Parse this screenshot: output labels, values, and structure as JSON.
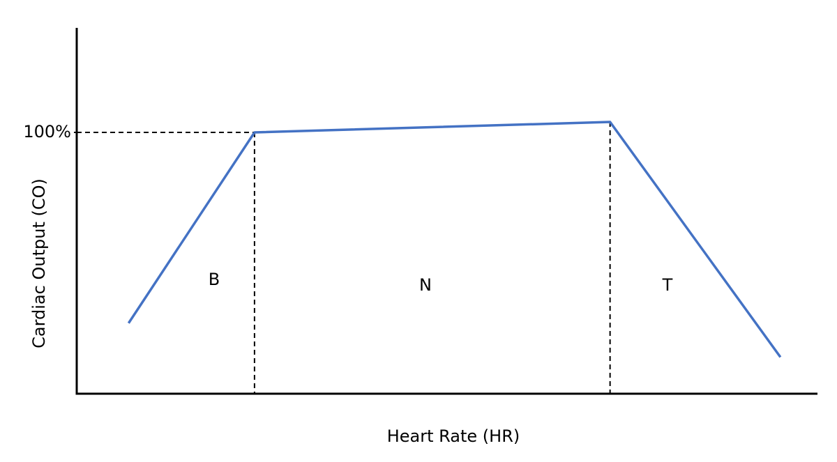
{
  "chart_data": {
    "type": "line",
    "x_label": "Heart Rate (HR)",
    "y_label": "Cardiac Output (CO)",
    "x": [
      7,
      24,
      72,
      95
    ],
    "series": [
      {
        "color": "#4472c4",
        "values": [
          27,
          100,
          104,
          14
        ]
      }
    ],
    "xlim": [
      0,
      100
    ],
    "ylim": [
      0,
      140
    ],
    "yticks": [
      {
        "value": 100,
        "label": "100%"
      }
    ],
    "annotations": [
      "B",
      "N",
      "T"
    ]
  }
}
